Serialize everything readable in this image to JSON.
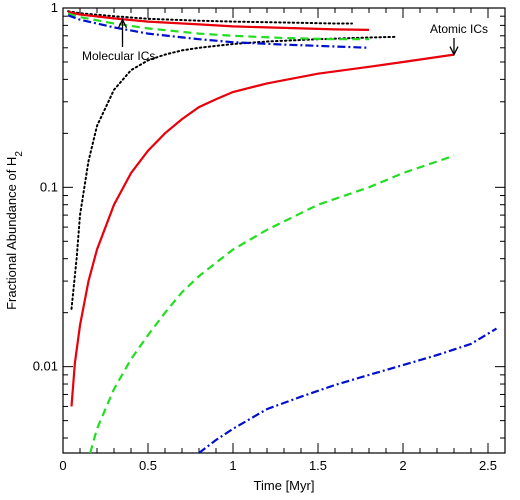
{
  "chart_data": {
    "type": "line",
    "title": "",
    "xlabel": "Time [Myr]",
    "ylabel": "Fractional Abundance of H",
    "ylabel_sub": "2",
    "xlim": [
      0,
      2.6
    ],
    "ylim": [
      0.0033,
      1
    ],
    "yscale": "log",
    "grid": false,
    "legend": "none",
    "x_ticks": [
      0,
      0.5,
      1,
      1.5,
      2,
      2.5
    ],
    "x_tick_labels": [
      "0",
      "0.5",
      "1",
      "1.5",
      "2",
      "2.5"
    ],
    "y_ticks": [
      0.01,
      0.1,
      1
    ],
    "y_tick_labels": [
      "0.01",
      "0.1",
      "1"
    ],
    "annotations": [
      {
        "text": "Atomic ICs",
        "arrow_to_x": 2.3,
        "arrow_to_y": 0.55
      },
      {
        "text": "Molecular ICs",
        "arrow_to_x": 0.35,
        "arrow_to_y": 0.86
      }
    ],
    "series": [
      {
        "group": "atomic",
        "color": "#000000",
        "dash": "dotted",
        "x": [
          0.05,
          0.08,
          0.1,
          0.15,
          0.2,
          0.3,
          0.4,
          0.5,
          0.6,
          0.7,
          0.8,
          1.0,
          1.2,
          1.5,
          1.8,
          1.95
        ],
        "y": [
          0.021,
          0.04,
          0.07,
          0.14,
          0.22,
          0.35,
          0.45,
          0.51,
          0.55,
          0.58,
          0.6,
          0.63,
          0.65,
          0.67,
          0.685,
          0.69
        ]
      },
      {
        "group": "atomic",
        "color": "#e8000b",
        "dash": "solid",
        "x": [
          0.05,
          0.07,
          0.1,
          0.15,
          0.2,
          0.3,
          0.4,
          0.5,
          0.6,
          0.7,
          0.8,
          0.9,
          1.0,
          1.2,
          1.5,
          1.8,
          2.0,
          2.3
        ],
        "y": [
          0.006,
          0.0105,
          0.017,
          0.03,
          0.045,
          0.08,
          0.12,
          0.16,
          0.2,
          0.24,
          0.28,
          0.31,
          0.34,
          0.38,
          0.43,
          0.47,
          0.5,
          0.55
        ]
      },
      {
        "group": "atomic",
        "color": "#22dd22",
        "dash": "dashed",
        "x": [
          0.16,
          0.2,
          0.3,
          0.4,
          0.5,
          0.6,
          0.7,
          0.8,
          1.0,
          1.2,
          1.5,
          1.8,
          2.0,
          2.3
        ],
        "y": [
          0.0033,
          0.0045,
          0.0075,
          0.011,
          0.015,
          0.02,
          0.026,
          0.032,
          0.045,
          0.058,
          0.08,
          0.1,
          0.12,
          0.15
        ]
      },
      {
        "group": "atomic",
        "color": "#0010cc",
        "dash": "dashdot",
        "x": [
          0.8,
          0.9,
          1.0,
          1.2,
          1.4,
          1.6,
          1.8,
          2.0,
          2.2,
          2.4,
          2.55
        ],
        "y": [
          0.0033,
          0.0039,
          0.0045,
          0.0058,
          0.0068,
          0.0079,
          0.009,
          0.0102,
          0.0116,
          0.0134,
          0.0163
        ]
      },
      {
        "group": "molecular",
        "color": "#000000",
        "dash": "dotted",
        "x": [
          0.03,
          0.1,
          0.3,
          0.5,
          0.8,
          1.0,
          1.3,
          1.6,
          1.7
        ],
        "y": [
          0.96,
          0.935,
          0.9,
          0.87,
          0.85,
          0.84,
          0.83,
          0.82,
          0.82
        ]
      },
      {
        "group": "molecular",
        "color": "#e8000b",
        "dash": "solid",
        "x": [
          0.03,
          0.1,
          0.3,
          0.5,
          0.8,
          1.0,
          1.3,
          1.6,
          1.8
        ],
        "y": [
          0.95,
          0.92,
          0.875,
          0.84,
          0.81,
          0.79,
          0.775,
          0.76,
          0.755
        ]
      },
      {
        "group": "molecular",
        "color": "#22dd22",
        "dash": "dashed",
        "x": [
          0.03,
          0.1,
          0.3,
          0.5,
          0.8,
          1.0,
          1.3,
          1.6,
          1.8
        ],
        "y": [
          0.93,
          0.89,
          0.82,
          0.77,
          0.72,
          0.7,
          0.68,
          0.67,
          0.67
        ]
      },
      {
        "group": "molecular",
        "color": "#0010cc",
        "dash": "dashdot",
        "x": [
          0.03,
          0.1,
          0.3,
          0.5,
          0.8,
          1.0,
          1.3,
          1.6,
          1.8
        ],
        "y": [
          0.91,
          0.86,
          0.78,
          0.72,
          0.67,
          0.645,
          0.625,
          0.61,
          0.6
        ]
      }
    ]
  }
}
